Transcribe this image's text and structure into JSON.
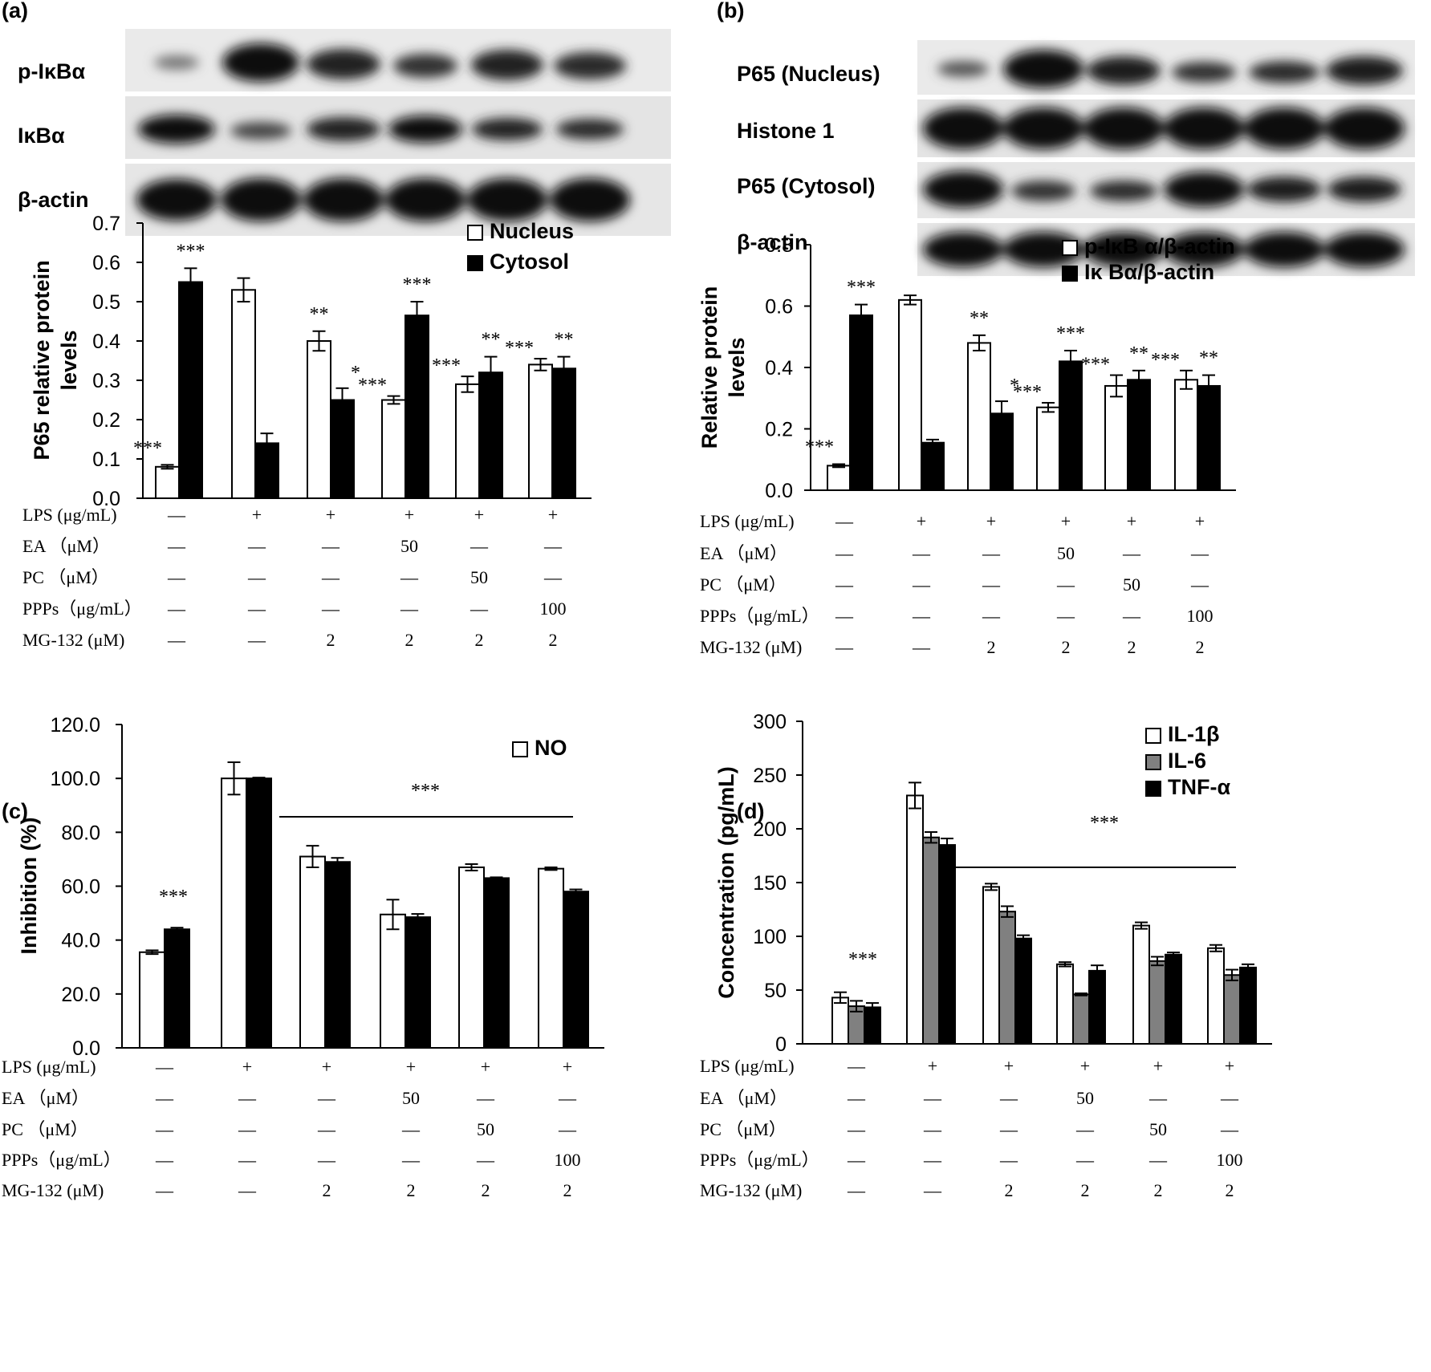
{
  "chart_data": [
    {
      "panel": "(a)",
      "type": "bar",
      "blot_labels": [
        "p-IκBα",
        "IκBα",
        "β-actin"
      ],
      "ylabel": "P65 relative protein levels",
      "yticks": [
        "0.0",
        "0.1",
        "0.2",
        "0.3",
        "0.4",
        "0.5",
        "0.6",
        "0.7"
      ],
      "ylim": [
        0,
        0.7
      ],
      "series": [
        {
          "name": "Nucleus",
          "fill": "#ffffff",
          "values": [
            0.08,
            0.53,
            0.4,
            0.25,
            0.29,
            0.34
          ],
          "errors": [
            0.005,
            0.03,
            0.025,
            0.01,
            0.02,
            0.015
          ],
          "stars": [
            "***",
            "",
            "**",
            "***",
            "***",
            "***"
          ]
        },
        {
          "name": "Cytosol",
          "fill": "#000000",
          "values": [
            0.55,
            0.14,
            0.25,
            0.465,
            0.32,
            0.33
          ],
          "errors": [
            0.035,
            0.025,
            0.03,
            0.035,
            0.04,
            0.03
          ],
          "stars": [
            "***",
            "",
            "*",
            "***",
            "**",
            "**"
          ]
        }
      ],
      "treatments": [
        {
          "label": "LPS (μg/mL)",
          "values": [
            "—",
            "+",
            "+",
            "+",
            "+",
            "+"
          ]
        },
        {
          "label": "EA （μM）",
          "values": [
            "—",
            "—",
            "—",
            "50",
            "—",
            "—"
          ]
        },
        {
          "label": "PC （μM）",
          "values": [
            "—",
            "—",
            "—",
            "—",
            "50",
            "—"
          ]
        },
        {
          "label": "PPPs（μg/mL）",
          "values": [
            "—",
            "—",
            "—",
            "—",
            "—",
            "100"
          ]
        },
        {
          "label": "MG-132 (μM)",
          "values": [
            "—",
            "—",
            "2",
            "2",
            "2",
            "2"
          ]
        }
      ]
    },
    {
      "panel": "(b)",
      "type": "bar",
      "blot_labels": [
        "P65 (Nucleus)",
        "Histone 1",
        "P65 (Cytosol)",
        "β-actin"
      ],
      "ylabel": "Relative protein levels",
      "yticks": [
        "0.0",
        "0.2",
        "0.4",
        "0.6",
        "0.8"
      ],
      "ylim": [
        0,
        0.8
      ],
      "series": [
        {
          "name": "p-IκB α/β-actin",
          "fill": "#ffffff",
          "values": [
            0.08,
            0.62,
            0.48,
            0.27,
            0.34,
            0.36
          ],
          "errors": [
            0.005,
            0.015,
            0.025,
            0.015,
            0.035,
            0.03
          ],
          "stars": [
            "***",
            "",
            "**",
            "***",
            "***",
            "***"
          ]
        },
        {
          "name": "Iκ Bα/β-actin",
          "fill": "#000000",
          "values": [
            0.57,
            0.155,
            0.25,
            0.42,
            0.36,
            0.34
          ],
          "errors": [
            0.035,
            0.01,
            0.04,
            0.035,
            0.03,
            0.035
          ],
          "stars": [
            "***",
            "",
            "*",
            "***",
            "**",
            "**"
          ]
        }
      ],
      "treatments": [
        {
          "label": "LPS (μg/mL)",
          "values": [
            "—",
            "+",
            "+",
            "+",
            "+",
            "+"
          ]
        },
        {
          "label": "EA （μM）",
          "values": [
            "—",
            "—",
            "—",
            "50",
            "—",
            "—"
          ]
        },
        {
          "label": "PC （μM）",
          "values": [
            "—",
            "—",
            "—",
            "—",
            "50",
            "—"
          ]
        },
        {
          "label": "PPPs（μg/mL）",
          "values": [
            "—",
            "—",
            "—",
            "—",
            "—",
            "100"
          ]
        },
        {
          "label": "MG-132 (μM)",
          "values": [
            "—",
            "—",
            "2",
            "2",
            "2",
            "2"
          ]
        }
      ]
    },
    {
      "panel": "(c)",
      "type": "bar",
      "ylabel": "Inhibition (%)",
      "yticks": [
        "0.0",
        "20.0",
        "40.0",
        "60.0",
        "80.0",
        "100.0",
        "120.0"
      ],
      "ylim": [
        0,
        120
      ],
      "series": [
        {
          "name": "NO",
          "fill": "#ffffff",
          "values": [
            35.5,
            100,
            71,
            49.5,
            67,
            66.5
          ],
          "errors": [
            0.7,
            6,
            4,
            5.5,
            1.2,
            0.5
          ]
        },
        {
          "name": "",
          "fill": "#000000",
          "values": [
            44,
            100,
            69,
            48.5,
            63,
            58
          ],
          "errors": [
            0.6,
            0.3,
            1.5,
            1.2,
            0.3,
            0.8
          ]
        }
      ],
      "stars_left": "***",
      "bracket_stars": "***",
      "treatments": [
        {
          "label": "LPS (μg/mL)",
          "values": [
            "—",
            "+",
            "+",
            "+",
            "+",
            "+"
          ]
        },
        {
          "label": "EA （μM）",
          "values": [
            "—",
            "—",
            "—",
            "50",
            "—",
            "—"
          ]
        },
        {
          "label": "PC （μM）",
          "values": [
            "—",
            "—",
            "—",
            "—",
            "50",
            "—"
          ]
        },
        {
          "label": "PPPs（μg/mL）",
          "values": [
            "—",
            "—",
            "—",
            "—",
            "—",
            "100"
          ]
        },
        {
          "label": "MG-132 (μM)",
          "values": [
            "—",
            "—",
            "2",
            "2",
            "2",
            "2"
          ]
        }
      ]
    },
    {
      "panel": "(d)",
      "type": "bar",
      "ylabel": "Concentration (pg/mL)",
      "yticks": [
        "0",
        "50",
        "100",
        "150",
        "200",
        "250",
        "300"
      ],
      "ylim": [
        0,
        300
      ],
      "series": [
        {
          "name": "IL-1β",
          "fill": "#ffffff",
          "values": [
            43,
            231,
            146,
            74,
            110,
            89
          ],
          "errors": [
            5,
            12,
            3,
            2,
            3,
            3
          ]
        },
        {
          "name": "IL-6",
          "fill": "#808080",
          "values": [
            35,
            192,
            123,
            46,
            77,
            64
          ],
          "errors": [
            5,
            5,
            5,
            1,
            4,
            5
          ]
        },
        {
          "name": "TNF-α",
          "fill": "#000000",
          "values": [
            34,
            185,
            98,
            68,
            83,
            71
          ],
          "errors": [
            4,
            6,
            3,
            5,
            2,
            3
          ]
        }
      ],
      "stars_left": "***",
      "bracket_stars": "***",
      "treatments": [
        {
          "label": "LPS (μg/mL)",
          "values": [
            "—",
            "+",
            "+",
            "+",
            "+",
            "+"
          ]
        },
        {
          "label": "EA （μM）",
          "values": [
            "—",
            "—",
            "—",
            "50",
            "—",
            "—"
          ]
        },
        {
          "label": "PC （μM）",
          "values": [
            "—",
            "—",
            "—",
            "—",
            "50",
            "—"
          ]
        },
        {
          "label": "PPPs（μg/mL）",
          "values": [
            "—",
            "—",
            "—",
            "—",
            "—",
            "100"
          ]
        },
        {
          "label": "MG-132 (μM)",
          "values": [
            "—",
            "—",
            "2",
            "2",
            "2",
            "2"
          ]
        }
      ]
    }
  ]
}
